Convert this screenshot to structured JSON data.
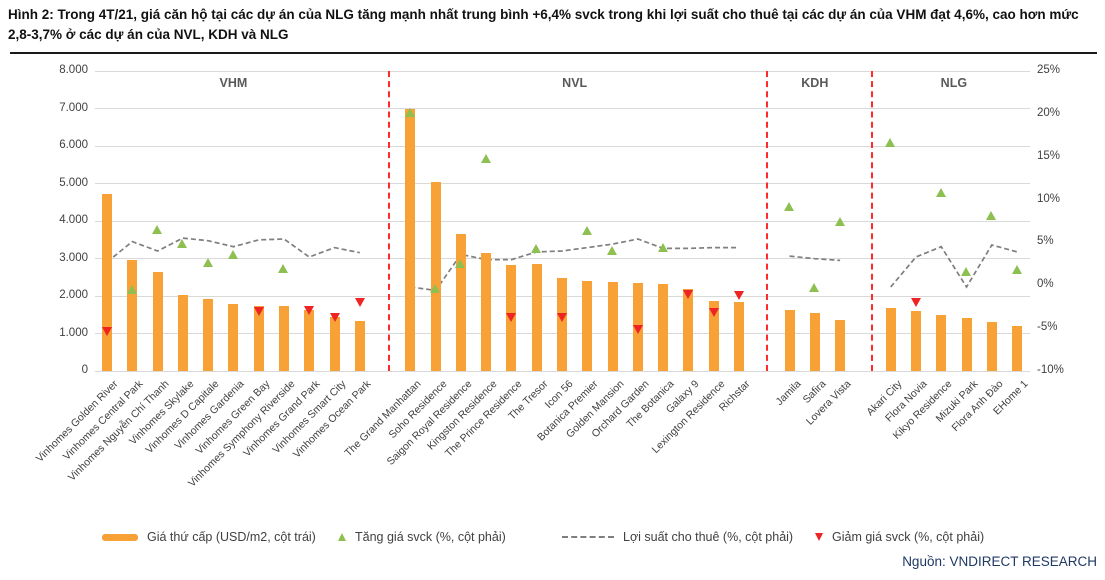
{
  "title": "Hình 2: Trong 4T/21, giá căn hộ tại các dự án của NLG tăng mạnh nhất trung bình +6,4% svck trong khi lợi suất cho thuê tại các dự án của VHM đạt 4,6%, cao hơn mức 2,8-3,7% ở các dự án của NVL, KDH và NLG",
  "source": "Nguồn: VNDIRECT RESEARCH",
  "legend": {
    "items": [
      {
        "type": "bar",
        "label": "Giá thứ cấp (USD/m2, cột trái)"
      },
      {
        "type": "up",
        "label": "Tăng giá svck (%, cột phải)"
      },
      {
        "type": "line",
        "label": "Lợi suất cho thuê (%, cột phải)"
      },
      {
        "type": "down",
        "label": "Giảm giá svck (%, cột phải)"
      }
    ]
  },
  "colors": {
    "bar": "#F7A136",
    "up": "#8DC051",
    "down": "#EE2424",
    "yield_line": "#7F7F7F",
    "separator": "#FF2B2B",
    "grid": "#D9D9D9",
    "axis_text": "#404040",
    "source_text": "#1F3864"
  },
  "chart_data": {
    "type": "bar",
    "overlays": [
      "scatter-up-triangles",
      "scatter-down-triangles",
      "dashed-line"
    ],
    "left_axis": {
      "title": "",
      "ticks": [
        "8.000",
        "7.000",
        "6.000",
        "5.000",
        "4.000",
        "3.000",
        "2.000",
        "1.000",
        "0"
      ],
      "min": 0,
      "max": 8000,
      "grid": true
    },
    "right_axis": {
      "title": "",
      "ticks": [
        "25%",
        "20%",
        "15%",
        "10%",
        "5%",
        "0%",
        "-5%",
        "-10%"
      ],
      "min": -10,
      "max": 25,
      "grid": false
    },
    "series_meaning": {
      "price": "Giá thứ cấp (USD/m2, cột trái)",
      "change_pct": "Tăng/Giảm giá svck (%, cột phải)",
      "yield_pct": "Lợi suất cho thuê (%, cột phải)"
    },
    "sections": [
      {
        "name": "VHM",
        "projects": [
          {
            "label": "Vinhomes Golden River",
            "price": 4720,
            "change_dir": "down",
            "change_pct": -5.4,
            "yield_pct": 2.7
          },
          {
            "label": "Vinhomes Central Park",
            "price": 2950,
            "change_dir": "up",
            "change_pct": -0.5,
            "yield_pct": 5.1
          },
          {
            "label": "Vinhomes Nguyễn Chí Thanh",
            "price": 2650,
            "change_dir": "up",
            "change_pct": 6.5,
            "yield_pct": 4.0
          },
          {
            "label": "Vinhomes Skylake",
            "price": 2030,
            "change_dir": "up",
            "change_pct": 4.9,
            "yield_pct": 5.5
          },
          {
            "label": "Vinhomes D Capitale",
            "price": 1930,
            "change_dir": "up",
            "change_pct": 2.7,
            "yield_pct": 5.2
          },
          {
            "label": "Vinhomes Gardenia",
            "price": 1790,
            "change_dir": "up",
            "change_pct": 3.6,
            "yield_pct": 4.5
          },
          {
            "label": "Vinhomes Green Bay",
            "price": 1740,
            "change_dir": "down",
            "change_pct": -3.1,
            "yield_pct": 5.3
          },
          {
            "label": "Vinhomes Symphony Riverside",
            "price": 1740,
            "change_dir": "up",
            "change_pct": 2.0,
            "yield_pct": 5.4
          },
          {
            "label": "Vinhomes Grand Park",
            "price": 1620,
            "change_dir": "down",
            "change_pct": -2.9,
            "yield_pct": 3.3
          },
          {
            "label": "Vinhomes Smart City",
            "price": 1430,
            "change_dir": "down",
            "change_pct": -3.7,
            "yield_pct": 4.4
          },
          {
            "label": "Vinhomes Ocean Park",
            "price": 1330,
            "change_dir": "down",
            "change_pct": -2.0,
            "yield_pct": 3.8
          }
        ]
      },
      {
        "name": "NVL",
        "projects": [
          {
            "label": "The Grand Manhattan",
            "price": 7000,
            "change_dir": "up",
            "change_pct": 20.2,
            "yield_pct": -0.2
          },
          {
            "label": "Soho Residence",
            "price": 5050,
            "change_dir": "up",
            "change_pct": -0.4,
            "yield_pct": -0.6
          },
          {
            "label": "Saigon Royal Residence",
            "price": 3650,
            "change_dir": "up",
            "change_pct": 2.6,
            "yield_pct": 3.6
          },
          {
            "label": "Kingston Residence",
            "price": 3160,
            "change_dir": "up",
            "change_pct": 14.8,
            "yield_pct": 3.0
          },
          {
            "label": "The Prince Residence",
            "price": 2840,
            "change_dir": "down",
            "change_pct": -3.7,
            "yield_pct": 3.0
          },
          {
            "label": "The Tresor",
            "price": 2850,
            "change_dir": "up",
            "change_pct": 4.3,
            "yield_pct": 3.9
          },
          {
            "label": "Icon 56",
            "price": 2490,
            "change_dir": "down",
            "change_pct": -3.8,
            "yield_pct": 4.0
          },
          {
            "label": "Botanica Premier",
            "price": 2400,
            "change_dir": "up",
            "change_pct": 6.4,
            "yield_pct": 4.4
          },
          {
            "label": "Golden Mansion",
            "price": 2370,
            "change_dir": "up",
            "change_pct": 4.1,
            "yield_pct": 4.8
          },
          {
            "label": "Orchard Garden",
            "price": 2350,
            "change_dir": "down",
            "change_pct": -5.1,
            "yield_pct": 5.4
          },
          {
            "label": "The Botanica",
            "price": 2310,
            "change_dir": "up",
            "change_pct": 4.4,
            "yield_pct": 4.3
          },
          {
            "label": "Galaxy 9",
            "price": 2190,
            "change_dir": "down",
            "change_pct": -1.1,
            "yield_pct": 4.3
          },
          {
            "label": "Lexington Residence",
            "price": 1870,
            "change_dir": "down",
            "change_pct": -3.2,
            "yield_pct": 4.4
          },
          {
            "label": "Richstar",
            "price": 1830,
            "change_dir": "down",
            "change_pct": -1.2,
            "yield_pct": 4.4
          }
        ]
      },
      {
        "name": "KDH",
        "projects": [
          {
            "label": "Jamila",
            "price": 1640,
            "change_dir": "up",
            "change_pct": 9.2,
            "yield_pct": 3.4
          },
          {
            "label": "Safira",
            "price": 1540,
            "change_dir": "up",
            "change_pct": -0.2,
            "yield_pct": 3.1
          },
          {
            "label": "Lovera Vista",
            "price": 1350,
            "change_dir": "up",
            "change_pct": 7.4,
            "yield_pct": 2.9
          }
        ]
      },
      {
        "name": "NLG",
        "projects": [
          {
            "label": "Akari City",
            "price": 1670,
            "change_dir": "up",
            "change_pct": 16.7,
            "yield_pct": -0.2
          },
          {
            "label": "Flora Novia",
            "price": 1590,
            "change_dir": "down",
            "change_pct": -2.0,
            "yield_pct": 3.3
          },
          {
            "label": "Kikyo Residence",
            "price": 1490,
            "change_dir": "up",
            "change_pct": 10.8,
            "yield_pct": 4.5
          },
          {
            "label": "Mizuki Park",
            "price": 1420,
            "change_dir": "up",
            "change_pct": 1.6,
            "yield_pct": -0.2
          },
          {
            "label": "Flora Anh Đào",
            "price": 1300,
            "change_dir": "up",
            "change_pct": 8.1,
            "yield_pct": 4.7
          },
          {
            "label": "EHome 1",
            "price": 1210,
            "change_dir": "up",
            "change_pct": 1.9,
            "yield_pct": 3.9
          }
        ]
      }
    ]
  }
}
